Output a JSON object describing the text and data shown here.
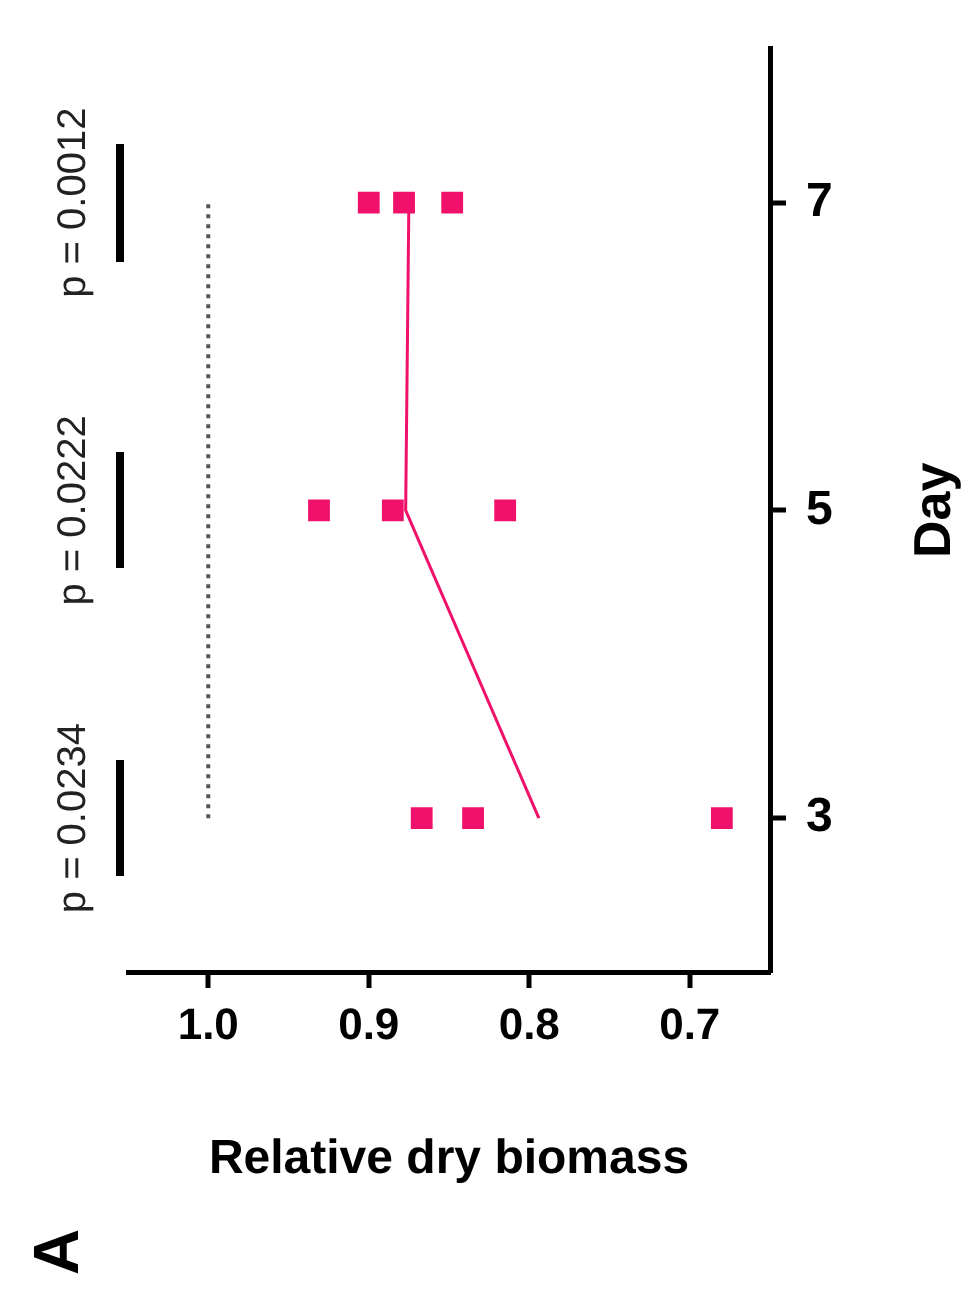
{
  "chart_data": {
    "type": "scatter",
    "title": "A",
    "xlabel": "Relative dry biomass",
    "ylabel": "Day",
    "xlim": [
      1.05,
      0.65
    ],
    "xticks": [
      {
        "value": 1.0,
        "label": "1.0"
      },
      {
        "value": 0.9,
        "label": "0.9"
      },
      {
        "value": 0.8,
        "label": "0.8"
      },
      {
        "value": 0.7,
        "label": "0.7"
      }
    ],
    "ylim": [
      2,
      8
    ],
    "yticks": [
      3,
      5,
      7
    ],
    "series": [
      {
        "color": "#f0116b",
        "marker": "square",
        "x": [
          0.867,
          0.835,
          0.68,
          0.931,
          0.885,
          0.815,
          0.9,
          0.878,
          0.848
        ],
        "values": [
          3,
          3,
          3,
          5,
          5,
          5,
          7,
          7,
          7
        ]
      },
      {
        "type": "line",
        "color": "#f0116b",
        "marker": "none",
        "line_style": "solid",
        "x": [
          0.794,
          0.877,
          0.875
        ],
        "values": [
          3,
          5,
          7
        ]
      },
      {
        "type": "line",
        "color": "#555555",
        "marker": "none",
        "line_style": "dotted",
        "x": [
          1.0,
          1.0
        ],
        "values": [
          3,
          7
        ]
      }
    ],
    "annotations": [
      "p = 0.0234",
      "p = 0.0222",
      "p = 0.0012"
    ],
    "grid": false,
    "legend": false
  }
}
